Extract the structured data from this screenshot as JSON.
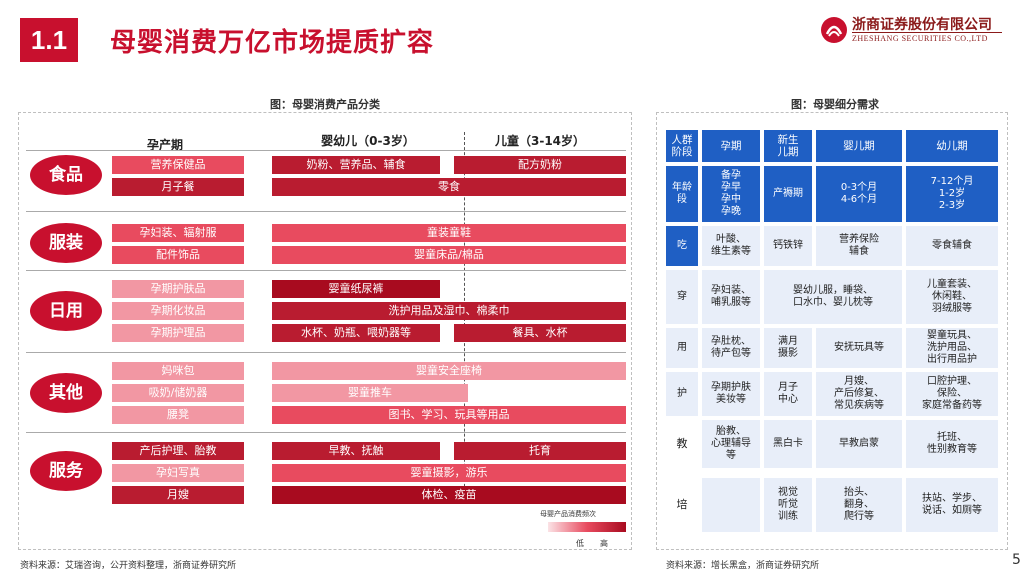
{
  "header": {
    "section_number": "1.1",
    "title": "母婴消费万亿市场提质扩容",
    "logo_cn": "浙商证券股份有限公司",
    "logo_en": "ZHESHANG SECURITIES CO.,LTD"
  },
  "left": {
    "title": "图：母婴消费产品分类",
    "col_pregnancy": "孕产期",
    "col_infant": "婴幼儿（0-3岁）",
    "col_child": "儿童（3-14岁）",
    "categories": [
      "食品",
      "服装",
      "日用",
      "其他",
      "服务"
    ],
    "bars": [
      {
        "text": "营养保健品",
        "level": 0.7
      },
      {
        "text": "月子餐",
        "level": 0.92
      },
      {
        "text": "奶粉、营养品、辅食",
        "level": 0.92
      },
      {
        "text": "配方奶粉",
        "level": 0.92
      },
      {
        "text": "零食",
        "level": 0.92
      },
      {
        "text": "孕妇装、辐射服",
        "level": 0.7
      },
      {
        "text": "配件饰品",
        "level": 0.7
      },
      {
        "text": "童装童鞋",
        "level": 0.7
      },
      {
        "text": "婴童床品/棉品",
        "level": 0.7
      },
      {
        "text": "孕期护肤品",
        "level": 0.35
      },
      {
        "text": "孕期化妆品",
        "level": 0.35
      },
      {
        "text": "孕期护理品",
        "level": 0.35
      },
      {
        "text": "婴童纸尿裤",
        "level": 1.0
      },
      {
        "text": "洗护用品及湿巾、棉柔巾",
        "level": 0.92
      },
      {
        "text": "水杯、奶瓶、喂奶器等",
        "level": 0.92
      },
      {
        "text": "餐具、水杯",
        "level": 0.92
      },
      {
        "text": "妈咪包",
        "level": 0.35
      },
      {
        "text": "吸奶/储奶器",
        "level": 0.35
      },
      {
        "text": "腰凳",
        "level": 0.35
      },
      {
        "text": "婴童安全座椅",
        "level": 0.35
      },
      {
        "text": "婴童推车",
        "level": 0.35
      },
      {
        "text": "图书、学习、玩具等用品",
        "level": 0.7
      },
      {
        "text": "产后护理、胎教",
        "level": 0.92
      },
      {
        "text": "孕妇写真",
        "level": 0.35
      },
      {
        "text": "月嫂",
        "level": 0.92
      },
      {
        "text": "早教、抚触",
        "level": 0.92
      },
      {
        "text": "托育",
        "level": 0.92
      },
      {
        "text": "婴童摄影，游乐",
        "level": 0.7
      },
      {
        "text": "体检、疫苗",
        "level": 1.0
      }
    ],
    "legend_title": "母婴产品消费频次",
    "legend_low": "低",
    "legend_high": "高"
  },
  "right": {
    "title": "图：母婴细分需求",
    "headers": [
      "人群\n阶段",
      "孕期",
      "新生\n儿期",
      "婴儿期",
      "幼儿期"
    ],
    "row_labels": [
      "年龄\n段",
      "吃",
      "穿",
      "用",
      "护",
      "教",
      "培"
    ],
    "rows": [
      [
        "备孕\n孕早\n孕中\n孕晚",
        "产褥期",
        "0-3个月\n4-6个月",
        "7-12个月\n1-2岁\n2-3岁"
      ],
      [
        "叶酸、\n维生素等",
        "钙铁锌",
        "营养保险\n辅食",
        "零食辅食"
      ],
      [
        "孕妇装、\n哺乳服等",
        "婴幼儿服，睡袋、\n口水巾、婴儿枕等",
        "儿童套装、\n休闲鞋、\n羽绒服等"
      ],
      [
        "孕肚枕、\n待产包等",
        "满月\n摄影",
        "安抚玩具等",
        "婴童玩具、\n洗护用品、\n出行用品护"
      ],
      [
        "孕期护肤\n美妆等",
        "月子\n中心",
        "月嫂、\n产后修复、\n常见疾病等",
        "口腔护理、\n保险、\n家庭常备药等"
      ],
      [
        "胎教、\n心理辅导\n等",
        "黑白卡",
        "早教启蒙",
        "托班、\n性别教育等"
      ],
      [
        "",
        "视觉\n听觉\n训练",
        "抬头、\n翻身、\n爬行等",
        "扶站、学步、\n说话、如厕等"
      ]
    ]
  },
  "footer": {
    "source_left": "资料来源：艾瑞咨询，公开资料整理，浙商证券研究所",
    "source_right": "资料来源：增长黑盒，浙商证券研究所",
    "page_number": "5"
  }
}
